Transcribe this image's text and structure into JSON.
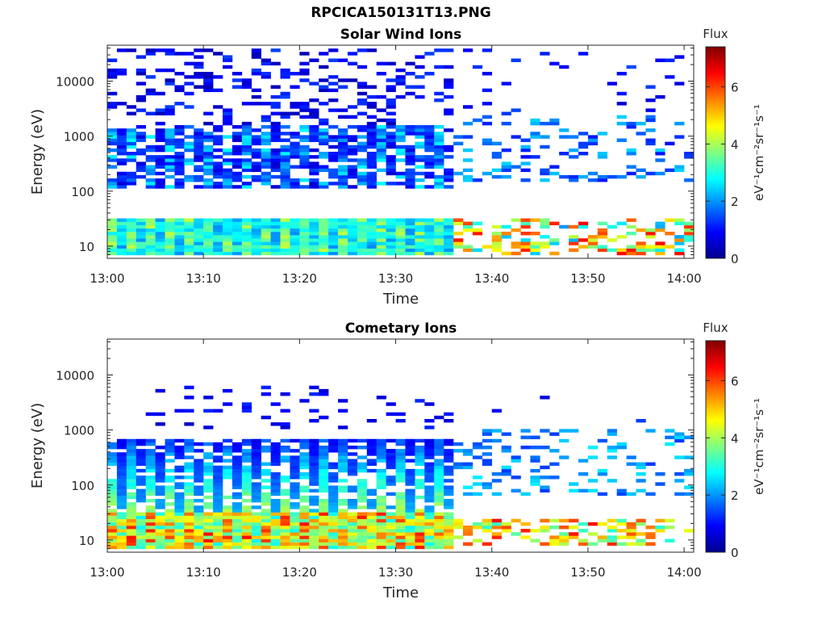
{
  "figure": {
    "title": "RPCICA150131T13.PNG"
  },
  "colors": {
    "colormap": [
      "#00008f",
      "#0000ff",
      "#0080ff",
      "#00ffff",
      "#80ff80",
      "#ffff00",
      "#ff8000",
      "#ff0000",
      "#800000"
    ],
    "axis": "#262626",
    "background": "#ffffff"
  },
  "chart_data": [
    {
      "type": "heatmap",
      "title": "Solar Wind Ions",
      "xlabel": "Time",
      "ylabel": "Energy (eV)",
      "y_scale": "log",
      "ylim": [
        6,
        45000
      ],
      "xlim": [
        "13:00",
        "14:01"
      ],
      "x_ticks": [
        "13:00",
        "13:10",
        "13:20",
        "13:30",
        "13:40",
        "13:50",
        "14:00"
      ],
      "y_ticks": [
        {
          "value": 10,
          "label": "10"
        },
        {
          "value": 100,
          "label": "100"
        },
        {
          "value": 1000,
          "label": "1000"
        },
        {
          "value": 10000,
          "label": "10000"
        }
      ],
      "colorbar": {
        "title": "Flux",
        "label": "eV⁻¹cm⁻²sr⁻¹s⁻¹",
        "range": [
          0,
          7.4
        ],
        "ticks": [
          "0",
          "2",
          "4",
          "6"
        ]
      },
      "bands_approx": [
        {
          "time": "13:00-13:36",
          "energy": "7-30 eV",
          "flux": "2-4.5",
          "pattern": "strong low-energy band, alternating ~1 min columns"
        },
        {
          "time": "13:00-13:36",
          "energy": "120-1500 eV",
          "flux": "1-3",
          "pattern": "broad band, alternating columns"
        },
        {
          "time": "13:00-13:36",
          "energy": "1500-40000 eV",
          "flux": "0.3-1.5",
          "pattern": "sparse horizontal dashes"
        },
        {
          "time": "13:36-14:01",
          "energy": "150-2500 eV",
          "flux": "1-2.5",
          "pattern": "sparse speckle"
        },
        {
          "time": "13:36-14:01",
          "energy": "7-30 eV",
          "flux": "2-6.5",
          "pattern": "narrow intermittent columns"
        }
      ]
    },
    {
      "type": "heatmap",
      "title": "Cometary Ions",
      "xlabel": "Time",
      "ylabel": "Energy (eV)",
      "y_scale": "log",
      "ylim": [
        6,
        45000
      ],
      "xlim": [
        "13:00",
        "14:01"
      ],
      "x_ticks": [
        "13:00",
        "13:10",
        "13:20",
        "13:30",
        "13:40",
        "13:50",
        "14:00"
      ],
      "y_ticks": [
        {
          "value": 10,
          "label": "10"
        },
        {
          "value": 100,
          "label": "100"
        },
        {
          "value": 1000,
          "label": "1000"
        },
        {
          "value": 10000,
          "label": "10000"
        }
      ],
      "colorbar": {
        "title": "Flux",
        "label": "eV⁻¹cm⁻²sr⁻¹s⁻¹",
        "range": [
          0,
          7.4
        ],
        "ticks": [
          "0",
          "2",
          "4",
          "6"
        ]
      },
      "bands_approx": [
        {
          "time": "13:00-13:36",
          "energy": "7-30 eV",
          "flux": "3-6.5",
          "pattern": "strong band, alternating columns"
        },
        {
          "time": "13:00-13:36",
          "energy": "30-700 eV",
          "flux": "1.5-3.5",
          "pattern": "columns fading upward"
        },
        {
          "time": "13:03-13:36",
          "energy": "1000-6000 eV",
          "flux": "0.5-1.2",
          "pattern": "sparse dashes"
        },
        {
          "time": "13:36-14:01",
          "energy": "8-25 eV",
          "flux": "3-6.5",
          "pattern": "narrow intermittent columns"
        },
        {
          "time": "13:36-14:01",
          "energy": "60-1000 eV",
          "flux": "1.5-2.5",
          "pattern": "sparse speckle"
        }
      ]
    }
  ]
}
